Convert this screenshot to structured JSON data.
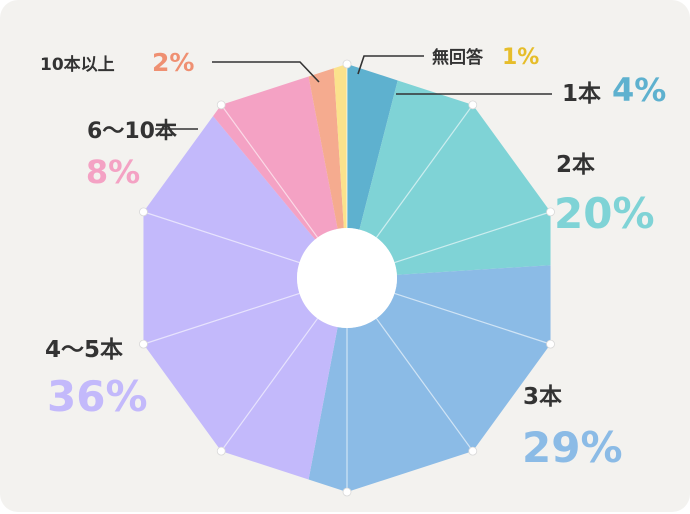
{
  "chart_data": {
    "type": "pie",
    "donut": true,
    "title": "",
    "slices": [
      {
        "label": "1本",
        "value": 4,
        "pct_text": "4%",
        "color": "#5eb1cf",
        "label_color": "#5eb1cf"
      },
      {
        "label": "2本",
        "value": 20,
        "pct_text": "20%",
        "color": "#7fd3d6",
        "label_color": "#7fd3d6"
      },
      {
        "label": "3本",
        "value": 29,
        "pct_text": "29%",
        "color": "#8bbbe6",
        "label_color": "#8bbbe6"
      },
      {
        "label": "4〜5本",
        "value": 36,
        "pct_text": "36%",
        "color": "#c3b9fb",
        "label_color": "#c3b9fb"
      },
      {
        "label": "6〜10本",
        "value": 8,
        "pct_text": "8%",
        "color": "#f4a2c4",
        "label_color": "#f4a2c4"
      },
      {
        "label": "10本以上",
        "value": 2,
        "pct_text": "2%",
        "color": "#f5ab8f",
        "label_color": "#ef9072"
      },
      {
        "label": "無回答",
        "value": 1,
        "pct_text": "1%",
        "color": "#fbe28c",
        "label_color": "#e6bd2a"
      }
    ]
  }
}
